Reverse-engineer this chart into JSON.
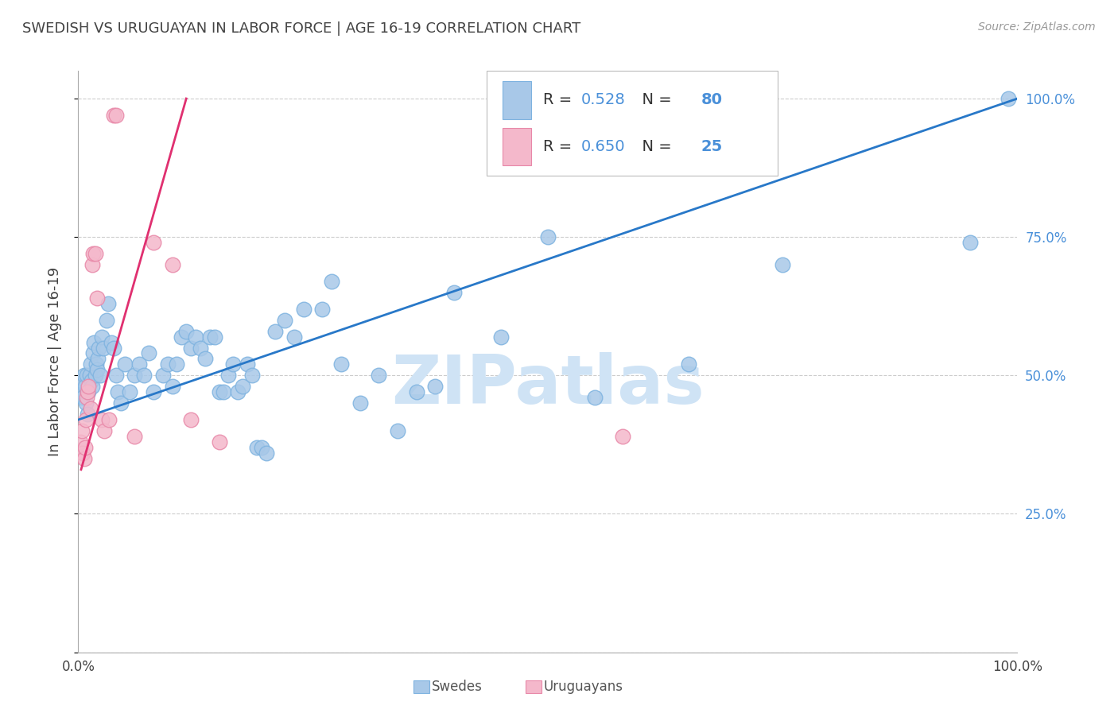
{
  "title": "SWEDISH VS URUGUAYAN IN LABOR FORCE | AGE 16-19 CORRELATION CHART",
  "source": "Source: ZipAtlas.com",
  "ylabel": "In Labor Force | Age 16-19",
  "watermark": "ZIPatlas",
  "xlim": [
    0.0,
    1.0
  ],
  "ylim": [
    0.0,
    1.05
  ],
  "legend_blue_R": "0.528",
  "legend_blue_N": "80",
  "legend_pink_R": "0.650",
  "legend_pink_N": "25",
  "legend_label_blue": "Swedes",
  "legend_label_pink": "Uruguayans",
  "blue_color": "#a8c8e8",
  "blue_edge_color": "#7eb3e0",
  "pink_color": "#f4b8cb",
  "pink_edge_color": "#e888a8",
  "line_blue_color": "#2878c8",
  "line_pink_color": "#e03070",
  "background_color": "#ffffff",
  "grid_color": "#cccccc",
  "title_color": "#444444",
  "axis_label_color": "#444444",
  "tick_label_color_right": "#4a90d9",
  "tick_label_color_bottom": "#444444",
  "legend_text_color": "#333333",
  "legend_num_color": "#4a90d9",
  "watermark_color": "#cfe3f5",
  "swedes_x": [
    0.003,
    0.004,
    0.005,
    0.006,
    0.007,
    0.008,
    0.009,
    0.01,
    0.011,
    0.012,
    0.013,
    0.014,
    0.015,
    0.016,
    0.017,
    0.018,
    0.019,
    0.02,
    0.021,
    0.022,
    0.023,
    0.025,
    0.027,
    0.03,
    0.032,
    0.035,
    0.038,
    0.04,
    0.042,
    0.045,
    0.05,
    0.055,
    0.06,
    0.065,
    0.07,
    0.075,
    0.08,
    0.09,
    0.095,
    0.1,
    0.105,
    0.11,
    0.115,
    0.12,
    0.125,
    0.13,
    0.135,
    0.14,
    0.145,
    0.15,
    0.155,
    0.16,
    0.165,
    0.17,
    0.175,
    0.18,
    0.185,
    0.19,
    0.195,
    0.2,
    0.21,
    0.22,
    0.23,
    0.24,
    0.26,
    0.27,
    0.28,
    0.3,
    0.32,
    0.34,
    0.36,
    0.38,
    0.4,
    0.45,
    0.5,
    0.55,
    0.65,
    0.75,
    0.95,
    0.99
  ],
  "swedes_y": [
    0.47,
    0.49,
    0.46,
    0.5,
    0.48,
    0.45,
    0.5,
    0.43,
    0.47,
    0.5,
    0.52,
    0.49,
    0.48,
    0.54,
    0.56,
    0.5,
    0.52,
    0.51,
    0.53,
    0.55,
    0.5,
    0.57,
    0.55,
    0.6,
    0.63,
    0.56,
    0.55,
    0.5,
    0.47,
    0.45,
    0.52,
    0.47,
    0.5,
    0.52,
    0.5,
    0.54,
    0.47,
    0.5,
    0.52,
    0.48,
    0.52,
    0.57,
    0.58,
    0.55,
    0.57,
    0.55,
    0.53,
    0.57,
    0.57,
    0.47,
    0.47,
    0.5,
    0.52,
    0.47,
    0.48,
    0.52,
    0.5,
    0.37,
    0.37,
    0.36,
    0.58,
    0.6,
    0.57,
    0.62,
    0.62,
    0.67,
    0.52,
    0.45,
    0.5,
    0.4,
    0.47,
    0.48,
    0.65,
    0.57,
    0.75,
    0.46,
    0.52,
    0.7,
    0.74,
    1.0
  ],
  "uruguayans_x": [
    0.002,
    0.004,
    0.005,
    0.006,
    0.007,
    0.008,
    0.009,
    0.01,
    0.011,
    0.013,
    0.015,
    0.016,
    0.018,
    0.02,
    0.025,
    0.028,
    0.033,
    0.038,
    0.04,
    0.06,
    0.08,
    0.1,
    0.12,
    0.15,
    0.58
  ],
  "uruguayans_y": [
    0.38,
    0.4,
    0.36,
    0.35,
    0.37,
    0.42,
    0.46,
    0.47,
    0.48,
    0.44,
    0.7,
    0.72,
    0.72,
    0.64,
    0.42,
    0.4,
    0.42,
    0.97,
    0.97,
    0.39,
    0.74,
    0.7,
    0.42,
    0.38,
    0.39
  ],
  "blue_line_x": [
    0.0,
    1.0
  ],
  "blue_line_y": [
    0.42,
    1.0
  ],
  "pink_line_x": [
    0.003,
    0.115
  ],
  "pink_line_y": [
    0.33,
    1.0
  ]
}
